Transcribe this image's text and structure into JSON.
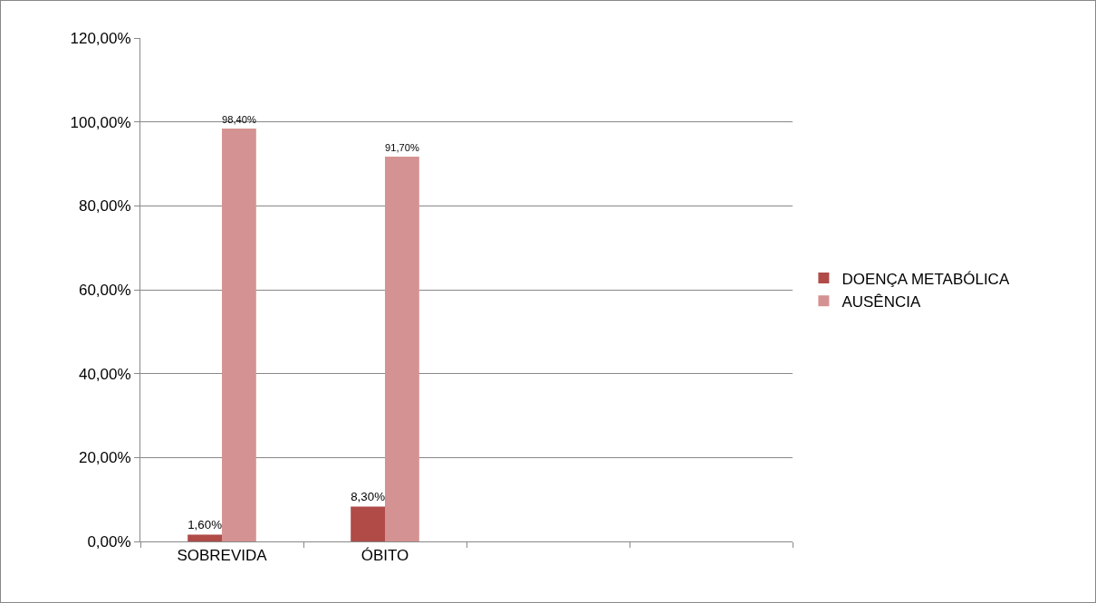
{
  "chart_data": {
    "type": "bar",
    "categories": [
      "SOBREVIDA",
      "ÓBITO",
      null,
      null
    ],
    "series": [
      {
        "name": "DOENÇA METABÓLICA",
        "color": "#b04b48",
        "values": [
          1.6,
          8.3,
          null,
          null
        ],
        "value_labels": [
          "1,60%",
          "8,30%",
          null,
          null
        ]
      },
      {
        "name": "AUSÊNCIA",
        "color": "#d49392",
        "values": [
          98.4,
          91.7,
          null,
          null
        ],
        "value_labels": [
          "98,40%",
          "91,70%",
          null,
          null
        ]
      }
    ],
    "ylim": [
      0,
      120
    ],
    "yticks": [
      {
        "value": 0,
        "label": "0,00%"
      },
      {
        "value": 20,
        "label": "20,00%"
      },
      {
        "value": 40,
        "label": "40,00%"
      },
      {
        "value": 60,
        "label": "60,00%"
      },
      {
        "value": 80,
        "label": "80,00%"
      },
      {
        "value": 100,
        "label": "100,00%"
      },
      {
        "value": 120,
        "label": "120,00%"
      }
    ],
    "grid": "y",
    "legend": "right"
  }
}
